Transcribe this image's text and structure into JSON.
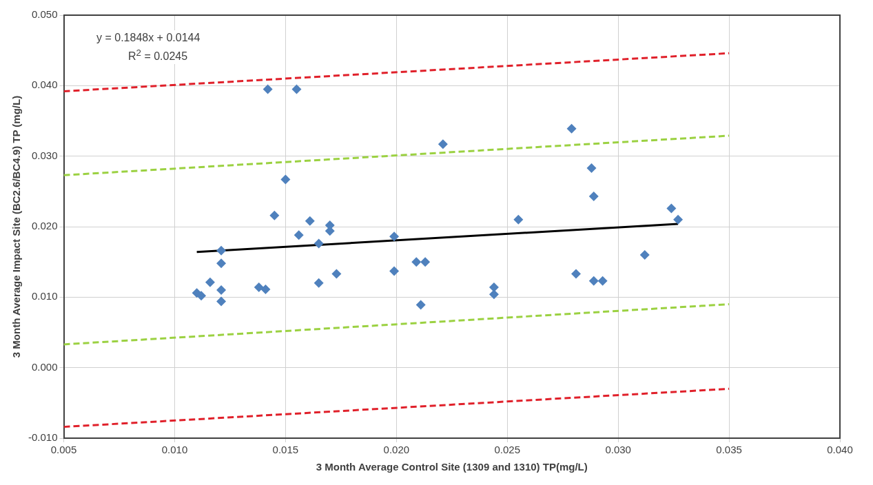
{
  "chart_data": {
    "type": "scatter",
    "xlabel": "3 Month Average Control Site (1309 and 1310) TP(mg/L)",
    "ylabel": "3 Month Average Impact Site (BC2.6/BC4.9) TP (mg/L)",
    "annotations": [
      "y = 0.1848x + 0.0144",
      "R$^{2}$ = 0.0245"
    ],
    "xlim": [
      0.005,
      0.04
    ],
    "xticks": [
      {
        "value": 0.005,
        "label": "0.005"
      },
      {
        "value": 0.01,
        "label": "0.010"
      },
      {
        "value": 0.015,
        "label": "0.015"
      },
      {
        "value": 0.02,
        "label": "0.020"
      },
      {
        "value": 0.025,
        "label": "0.025"
      },
      {
        "value": 0.03,
        "label": "0.030"
      },
      {
        "value": 0.035,
        "label": "0.035"
      },
      {
        "value": 0.04,
        "label": "0.040"
      }
    ],
    "ylim": [
      -0.01,
      0.05
    ],
    "yticks": [
      {
        "value": -0.01,
        "label": "-0.010"
      },
      {
        "value": 0,
        "label": "0.000"
      },
      {
        "value": 0.01,
        "label": "0.010"
      },
      {
        "value": 0.02,
        "label": "0.020"
      },
      {
        "value": 0.03,
        "label": "0.030"
      },
      {
        "value": 0.04,
        "label": "0.040"
      },
      {
        "value": 0.05,
        "label": "0.050"
      }
    ],
    "grid": true,
    "legend": false,
    "series": [
      {
        "type": "scatter",
        "color": "#4f81bd",
        "marker": "diamond",
        "x": [
          0.0142,
          0.0155,
          0.0221,
          0.015,
          0.0145,
          0.0161,
          0.017,
          0.017,
          0.0156,
          0.0165,
          0.0199,
          0.0121,
          0.0121,
          0.0209,
          0.0213,
          0.0199,
          0.0173,
          0.0165,
          0.0116,
          0.0138,
          0.0141,
          0.0121,
          0.011,
          0.0112,
          0.0121,
          0.0211,
          0.0279,
          0.0288,
          0.0289,
          0.0324,
          0.0327,
          0.0312,
          0.0281,
          0.0289,
          0.0293,
          0.0255,
          0.0244,
          0.0244
        ],
        "values": [
          0.0395,
          0.0395,
          0.0317,
          0.0267,
          0.0216,
          0.0208,
          0.0202,
          0.0194,
          0.0188,
          0.0176,
          0.0186,
          0.0166,
          0.0148,
          0.015,
          0.015,
          0.0137,
          0.0133,
          0.012,
          0.0121,
          0.0114,
          0.0111,
          0.011,
          0.0106,
          0.0102,
          0.0094,
          0.0089,
          0.0339,
          0.0283,
          0.0243,
          0.0226,
          0.021,
          0.016,
          0.0133,
          0.0123,
          0.0123,
          0.021,
          0.0114,
          0.0104
        ]
      },
      {
        "type": "line",
        "color": "#000000",
        "marker": "none",
        "line_style": "solid",
        "x": [
          0.011,
          0.0327
        ],
        "values": [
          0.0164,
          0.0204
        ]
      },
      {
        "type": "line",
        "color": "#9bd141",
        "marker": "none",
        "line_style": "dashed",
        "x": [
          0.005,
          0.035
        ],
        "values": [
          0.0273,
          0.0329
        ]
      },
      {
        "type": "line",
        "color": "#9bd141",
        "marker": "none",
        "line_style": "dashed",
        "x": [
          0.005,
          0.035
        ],
        "values": [
          0.0033,
          0.009
        ]
      },
      {
        "type": "line",
        "color": "#e0202a",
        "marker": "none",
        "line_style": "dashed",
        "x": [
          0.005,
          0.035
        ],
        "values": [
          0.0392,
          0.0446
        ]
      },
      {
        "type": "line",
        "color": "#e0202a",
        "marker": "none",
        "line_style": "dashed",
        "x": [
          0.005,
          0.035
        ],
        "values": [
          -0.0084,
          -0.003
        ]
      }
    ]
  }
}
